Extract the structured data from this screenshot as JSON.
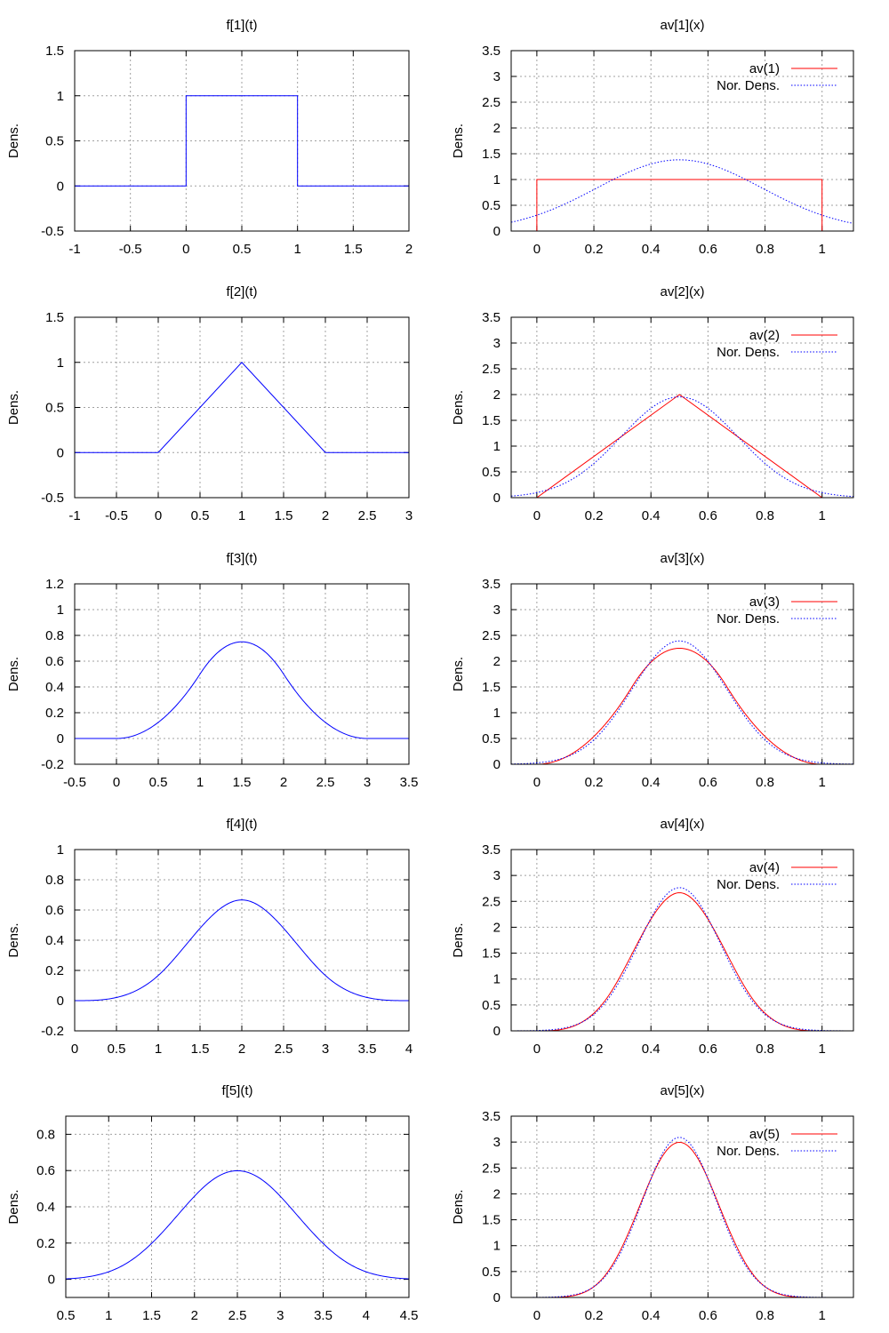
{
  "figure": {
    "ylabel": "Dens."
  },
  "chart_data": [
    {
      "id": "f1",
      "type": "line",
      "title": "f[1](t)",
      "ylabel": "Dens.",
      "xlim": [
        -1,
        2
      ],
      "ylim": [
        -0.5,
        1.5
      ],
      "xticks": [
        -1,
        -0.5,
        0,
        0.5,
        1,
        1.5,
        2
      ],
      "xticklabels": [
        "-1",
        "-0.5",
        "0",
        "0.5",
        "1",
        "1.5",
        "2"
      ],
      "yticks": [
        -0.5,
        0,
        0.5,
        1,
        1.5
      ],
      "yticklabels": [
        "-0.5",
        "0",
        "0.5",
        "1",
        "1.5"
      ],
      "grid": true,
      "legend": "none",
      "series": [
        {
          "color": "#0000ff",
          "style": "solid",
          "points": [
            [
              -1,
              0
            ],
            [
              0,
              0
            ],
            [
              0,
              1
            ],
            [
              1,
              1
            ],
            [
              1,
              0
            ],
            [
              2,
              0
            ]
          ]
        }
      ]
    },
    {
      "id": "av1",
      "type": "line",
      "title": "av[1](x)",
      "ylabel": "Dens.",
      "xlim": [
        -0.09,
        1.11
      ],
      "ylim": [
        0,
        3.5
      ],
      "xticks": [
        0,
        0.2,
        0.4,
        0.6,
        0.8,
        1
      ],
      "xticklabels": [
        "0",
        "0.2",
        "0.4",
        "0.6",
        "0.8",
        "1"
      ],
      "yticks": [
        0,
        0.5,
        1,
        1.5,
        2,
        2.5,
        3,
        3.5
      ],
      "yticklabels": [
        "0",
        "0.5",
        "1",
        "1.5",
        "2",
        "2.5",
        "3",
        "3.5"
      ],
      "grid": true,
      "legend": "top-right",
      "series": [
        {
          "name": "av(1)",
          "color": "#ff0000",
          "style": "solid",
          "points": [
            [
              -0.09,
              0
            ],
            [
              0,
              0
            ],
            [
              0,
              1
            ],
            [
              1,
              1
            ],
            [
              1,
              0
            ],
            [
              1.11,
              0
            ]
          ]
        },
        {
          "name": "Nor. Dens.",
          "color": "#0000ff",
          "style": "dotted",
          "normal": {
            "mu": 0.5,
            "sigma": 0.2887
          }
        }
      ]
    },
    {
      "id": "f2",
      "type": "line",
      "title": "f[2](t)",
      "ylabel": "Dens.",
      "xlim": [
        -1,
        3
      ],
      "ylim": [
        -0.5,
        1.5
      ],
      "xticks": [
        -1,
        -0.5,
        0,
        0.5,
        1,
        1.5,
        2,
        2.5,
        3
      ],
      "xticklabels": [
        "-1",
        "-0.5",
        "0",
        "0.5",
        "1",
        "1.5",
        "2",
        "2.5",
        "3"
      ],
      "yticks": [
        -0.5,
        0,
        0.5,
        1,
        1.5
      ],
      "yticklabels": [
        "-0.5",
        "0",
        "0.5",
        "1",
        "1.5"
      ],
      "grid": true,
      "legend": "none",
      "series": [
        {
          "color": "#0000ff",
          "style": "solid",
          "points": [
            [
              -1,
              0
            ],
            [
              0,
              0
            ],
            [
              1,
              1
            ],
            [
              2,
              0
            ],
            [
              3,
              0
            ]
          ]
        }
      ]
    },
    {
      "id": "av2",
      "type": "line",
      "title": "av[2](x)",
      "ylabel": "Dens.",
      "xlim": [
        -0.09,
        1.11
      ],
      "ylim": [
        0,
        3.5
      ],
      "xticks": [
        0,
        0.2,
        0.4,
        0.6,
        0.8,
        1
      ],
      "xticklabels": [
        "0",
        "0.2",
        "0.4",
        "0.6",
        "0.8",
        "1"
      ],
      "yticks": [
        0,
        0.5,
        1,
        1.5,
        2,
        2.5,
        3,
        3.5
      ],
      "yticklabels": [
        "0",
        "0.5",
        "1",
        "1.5",
        "2",
        "2.5",
        "3",
        "3.5"
      ],
      "grid": true,
      "legend": "top-right",
      "series": [
        {
          "name": "av(2)",
          "color": "#ff0000",
          "style": "solid",
          "points": [
            [
              -0.09,
              0
            ],
            [
              0,
              0
            ],
            [
              0.5,
              2
            ],
            [
              1,
              0
            ],
            [
              1.11,
              0
            ]
          ]
        },
        {
          "name": "Nor. Dens.",
          "color": "#0000ff",
          "style": "dotted",
          "normal": {
            "mu": 0.5,
            "sigma": 0.2041
          }
        }
      ]
    },
    {
      "id": "f3",
      "type": "line",
      "title": "f[3](t)",
      "ylabel": "Dens.",
      "xlim": [
        -0.5,
        3.5
      ],
      "ylim": [
        -0.2,
        1.2
      ],
      "xticks": [
        -0.5,
        0,
        0.5,
        1,
        1.5,
        2,
        2.5,
        3,
        3.5
      ],
      "xticklabels": [
        "-0.5",
        "0",
        "0.5",
        "1",
        "1.5",
        "2",
        "2.5",
        "3",
        "3.5"
      ],
      "yticks": [
        -0.2,
        0,
        0.2,
        0.4,
        0.6,
        0.8,
        1,
        1.2
      ],
      "yticklabels": [
        "-0.2",
        "0",
        "0.2",
        "0.4",
        "0.6",
        "0.8",
        "1",
        "1.2"
      ],
      "grid": true,
      "legend": "none",
      "series": [
        {
          "color": "#0000ff",
          "style": "solid",
          "irwin_hall": {
            "n": 3,
            "scale": 1
          }
        }
      ]
    },
    {
      "id": "av3",
      "type": "line",
      "title": "av[3](x)",
      "ylabel": "Dens.",
      "xlim": [
        -0.09,
        1.11
      ],
      "ylim": [
        0,
        3.5
      ],
      "xticks": [
        0,
        0.2,
        0.4,
        0.6,
        0.8,
        1
      ],
      "xticklabels": [
        "0",
        "0.2",
        "0.4",
        "0.6",
        "0.8",
        "1"
      ],
      "yticks": [
        0,
        0.5,
        1,
        1.5,
        2,
        2.5,
        3,
        3.5
      ],
      "yticklabels": [
        "0",
        "0.5",
        "1",
        "1.5",
        "2",
        "2.5",
        "3",
        "3.5"
      ],
      "grid": true,
      "legend": "top-right",
      "series": [
        {
          "name": "av(3)",
          "color": "#ff0000",
          "style": "solid",
          "irwin_hall": {
            "n": 3,
            "scale": 3
          }
        },
        {
          "name": "Nor. Dens.",
          "color": "#0000ff",
          "style": "dotted",
          "normal": {
            "mu": 0.5,
            "sigma": 0.1667
          }
        }
      ]
    },
    {
      "id": "f4",
      "type": "line",
      "title": "f[4](t)",
      "ylabel": "Dens.",
      "xlim": [
        0,
        4
      ],
      "ylim": [
        -0.2,
        1
      ],
      "xticks": [
        0,
        0.5,
        1,
        1.5,
        2,
        2.5,
        3,
        3.5,
        4
      ],
      "xticklabels": [
        "0",
        "0.5",
        "1",
        "1.5",
        "2",
        "2.5",
        "3",
        "3.5",
        "4"
      ],
      "yticks": [
        -0.2,
        0,
        0.2,
        0.4,
        0.6,
        0.8,
        1
      ],
      "yticklabels": [
        "-0.2",
        "0",
        "0.2",
        "0.4",
        "0.6",
        "0.8",
        "1"
      ],
      "grid": true,
      "legend": "none",
      "series": [
        {
          "color": "#0000ff",
          "style": "solid",
          "irwin_hall": {
            "n": 4,
            "scale": 1
          }
        }
      ]
    },
    {
      "id": "av4",
      "type": "line",
      "title": "av[4](x)",
      "ylabel": "Dens.",
      "xlim": [
        -0.09,
        1.11
      ],
      "ylim": [
        0,
        3.5
      ],
      "xticks": [
        0,
        0.2,
        0.4,
        0.6,
        0.8,
        1
      ],
      "xticklabels": [
        "0",
        "0.2",
        "0.4",
        "0.6",
        "0.8",
        "1"
      ],
      "yticks": [
        0,
        0.5,
        1,
        1.5,
        2,
        2.5,
        3,
        3.5
      ],
      "yticklabels": [
        "0",
        "0.5",
        "1",
        "1.5",
        "2",
        "2.5",
        "3",
        "3.5"
      ],
      "grid": true,
      "legend": "top-right",
      "series": [
        {
          "name": "av(4)",
          "color": "#ff0000",
          "style": "solid",
          "irwin_hall": {
            "n": 4,
            "scale": 4
          }
        },
        {
          "name": "Nor. Dens.",
          "color": "#0000ff",
          "style": "dotted",
          "normal": {
            "mu": 0.5,
            "sigma": 0.1443
          }
        }
      ]
    },
    {
      "id": "f5",
      "type": "line",
      "title": "f[5](t)",
      "ylabel": "Dens.",
      "xlim": [
        0.5,
        4.5
      ],
      "ylim": [
        -0.1,
        0.9
      ],
      "xticks": [
        0.5,
        1,
        1.5,
        2,
        2.5,
        3,
        3.5,
        4,
        4.5
      ],
      "xticklabels": [
        "0.5",
        "1",
        "1.5",
        "2",
        "2.5",
        "3",
        "3.5",
        "4",
        "4.5"
      ],
      "yticks": [
        0,
        0.2,
        0.4,
        0.6,
        0.8
      ],
      "yticklabels": [
        "0",
        "0.2",
        "0.4",
        "0.6",
        "0.8"
      ],
      "grid": true,
      "legend": "none",
      "series": [
        {
          "color": "#0000ff",
          "style": "solid",
          "irwin_hall": {
            "n": 5,
            "scale": 1
          }
        }
      ]
    },
    {
      "id": "av5",
      "type": "line",
      "title": "av[5](x)",
      "ylabel": "Dens.",
      "xlim": [
        -0.09,
        1.11
      ],
      "ylim": [
        0,
        3.5
      ],
      "xticks": [
        0,
        0.2,
        0.4,
        0.6,
        0.8,
        1
      ],
      "xticklabels": [
        "0",
        "0.2",
        "0.4",
        "0.6",
        "0.8",
        "1"
      ],
      "yticks": [
        0,
        0.5,
        1,
        1.5,
        2,
        2.5,
        3,
        3.5
      ],
      "yticklabels": [
        "0",
        "0.5",
        "1",
        "1.5",
        "2",
        "2.5",
        "3",
        "3.5"
      ],
      "grid": true,
      "legend": "top-right",
      "series": [
        {
          "name": "av(5)",
          "color": "#ff0000",
          "style": "solid",
          "irwin_hall": {
            "n": 5,
            "scale": 5
          }
        },
        {
          "name": "Nor. Dens.",
          "color": "#0000ff",
          "style": "dotted",
          "normal": {
            "mu": 0.5,
            "sigma": 0.1291
          }
        }
      ]
    }
  ]
}
